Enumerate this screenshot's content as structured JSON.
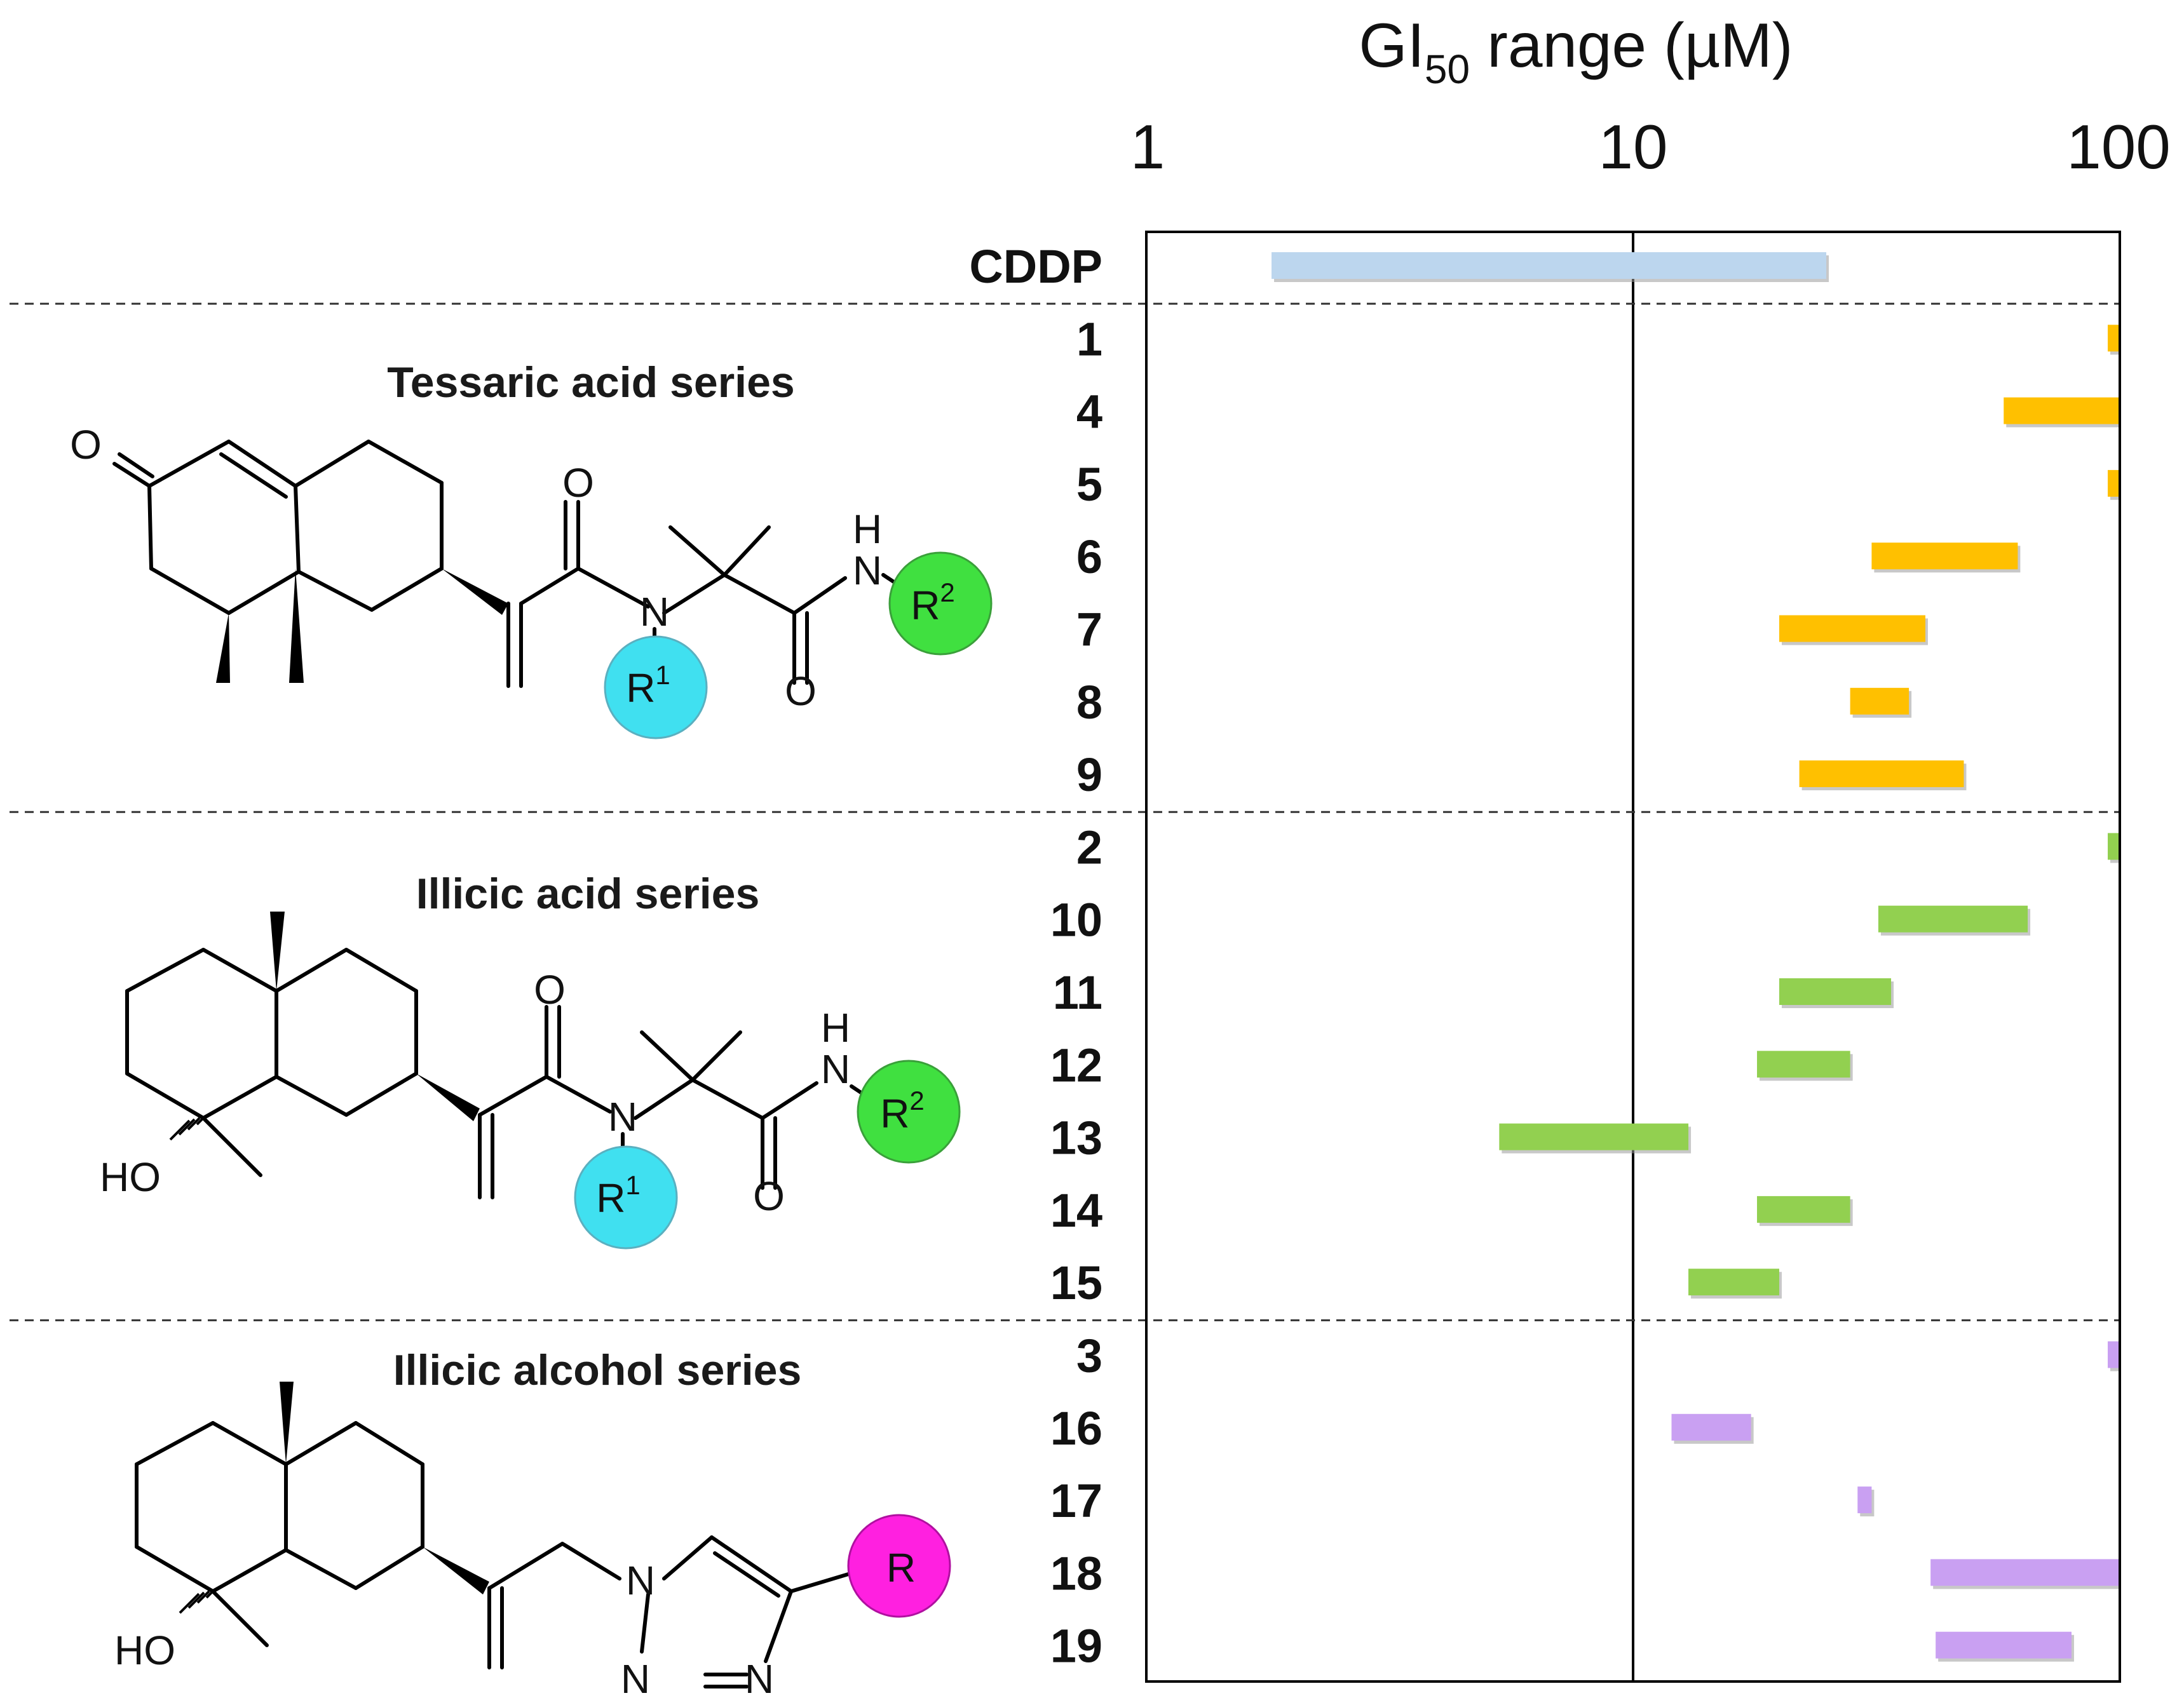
{
  "chart_data": {
    "type": "range-bar",
    "title": "GI50 range (µM)",
    "title_parts": {
      "main": "GI",
      "subscript": "50",
      "rest": " range (µM)"
    },
    "x_scale": "log",
    "xlim": [
      1,
      100
    ],
    "x_ticks": [
      1,
      10,
      100
    ],
    "x_tick_labels": [
      "1",
      "10",
      "100"
    ],
    "colors": {
      "cddp": "#bcd6ee",
      "tessaric": "#ffc000",
      "illicic_acid": "#92d050",
      "illicic_alcohol": "#c9a0f2",
      "r1_circle": "#40e0f0",
      "r2_circle": "#40e040",
      "r_circle": "#ff20e0"
    },
    "reference": {
      "label": "CDDP",
      "range": [
        1.8,
        25
      ]
    },
    "series": [
      {
        "name": "Tessaric acid series",
        "color_key": "tessaric",
        "rows": [
          {
            "label": "1",
            "range": [
              95,
              100
            ]
          },
          {
            "label": "4",
            "range": [
              58,
              100
            ]
          },
          {
            "label": "5",
            "range": [
              95,
              100
            ]
          },
          {
            "label": "6",
            "range": [
              31,
              62
            ]
          },
          {
            "label": "7",
            "range": [
              20,
              40
            ]
          },
          {
            "label": "8",
            "range": [
              28,
              37
            ]
          },
          {
            "label": "9",
            "range": [
              22,
              48
            ]
          }
        ]
      },
      {
        "name": "Illicic acid series",
        "color_key": "illicic_acid",
        "rows": [
          {
            "label": "2",
            "range": [
              95,
              100
            ]
          },
          {
            "label": "10",
            "range": [
              32,
              65
            ]
          },
          {
            "label": "11",
            "range": [
              20,
              34
            ]
          },
          {
            "label": "12",
            "range": [
              18,
              28
            ]
          },
          {
            "label": "13",
            "range": [
              5.3,
              13
            ]
          },
          {
            "label": "14",
            "range": [
              18,
              28
            ]
          },
          {
            "label": "15",
            "range": [
              13,
              20
            ]
          }
        ]
      },
      {
        "name": "Illicic alcohol series",
        "color_key": "illicic_alcohol",
        "rows": [
          {
            "label": "3",
            "range": [
              95,
              100
            ]
          },
          {
            "label": "16",
            "range": [
              12,
              17.5
            ]
          },
          {
            "label": "17",
            "range": [
              29,
              31
            ]
          },
          {
            "label": "18",
            "range": [
              41,
              100
            ]
          },
          {
            "label": "19",
            "range": [
              42,
              80
            ]
          }
        ]
      }
    ],
    "structure_labels": {
      "oxo": "O",
      "oxygen": "O",
      "nitrogen": "N",
      "hydrogen": "H",
      "hydroxyl": "HO",
      "r": "R",
      "r1_sup": "1",
      "r2_sup": "2"
    }
  }
}
